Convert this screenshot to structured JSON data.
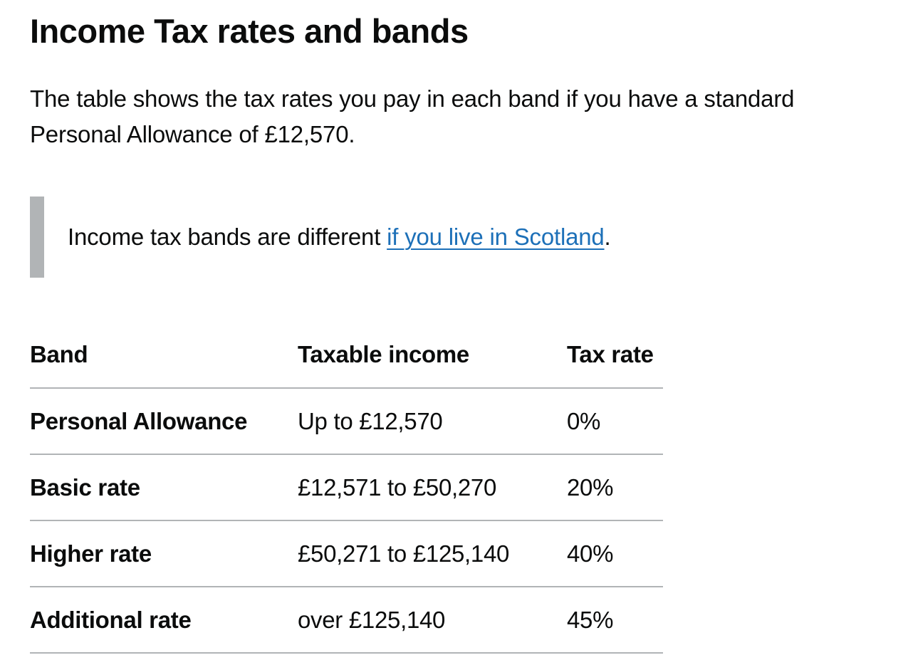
{
  "page": {
    "title": "Income Tax rates and bands",
    "intro": "The table shows the tax rates you pay in each band if you have a standard Personal Allowance of £12,570."
  },
  "inset": {
    "text_before": "Income tax bands are different ",
    "link_text": "if you live in Scotland",
    "text_after": "."
  },
  "colors": {
    "link": "#1d70b8",
    "inset_border": "#b1b4b6",
    "text": "#0b0c0c"
  },
  "table": {
    "headers": [
      "Band",
      "Taxable income",
      "Tax rate"
    ],
    "rows": [
      {
        "band": "Personal Allowance",
        "income": "Up to £12,570",
        "rate": "0%"
      },
      {
        "band": "Basic rate",
        "income": "£12,571 to £50,270",
        "rate": "20%"
      },
      {
        "band": "Higher rate",
        "income": "£50,271 to £125,140",
        "rate": "40%"
      },
      {
        "band": "Additional rate",
        "income": "over £125,140",
        "rate": "45%"
      }
    ]
  }
}
